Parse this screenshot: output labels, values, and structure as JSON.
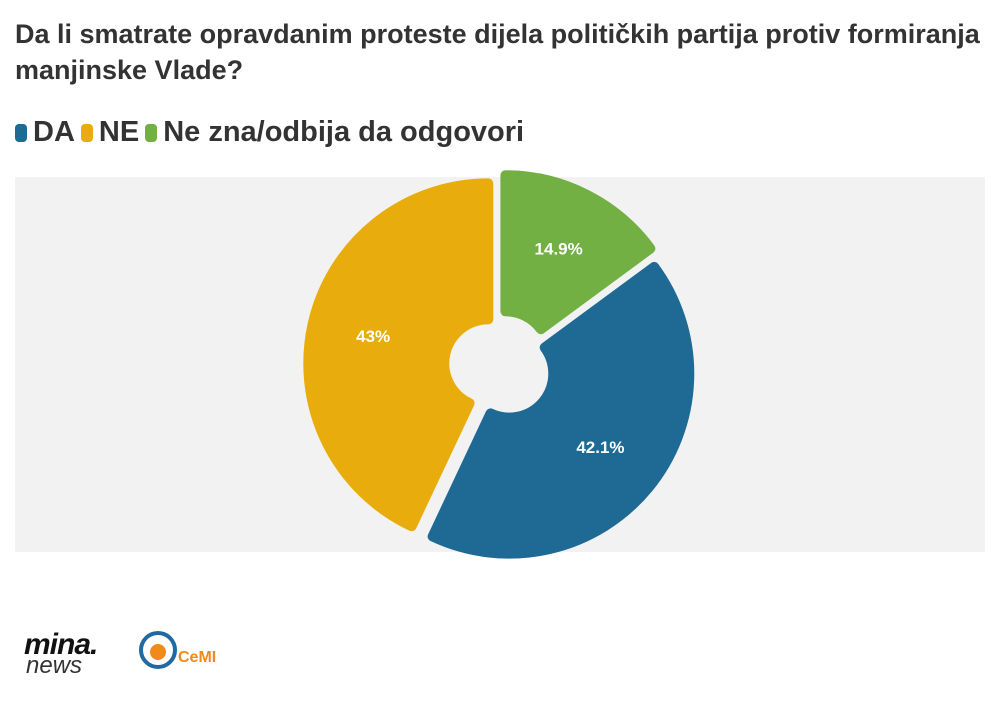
{
  "chart_data": {
    "type": "pie",
    "title": "Da li smatrate opravdanim proteste dijela političkih partija protiv formiranja manjinske Vlade?",
    "series": [
      {
        "name": "DA",
        "color": "#1f6a94"
      },
      {
        "name": "NE",
        "color": "#e8ad0c"
      },
      {
        "name": "Ne zna/odbija da odgovori",
        "color": "#72b043"
      }
    ],
    "values": [
      42.1,
      43,
      14.9
    ],
    "value_labels": [
      "42.1%",
      "43%",
      "14.9%"
    ]
  },
  "footer": {
    "brand": "mina.",
    "brand_sub": "news",
    "partner": "CeMI"
  }
}
